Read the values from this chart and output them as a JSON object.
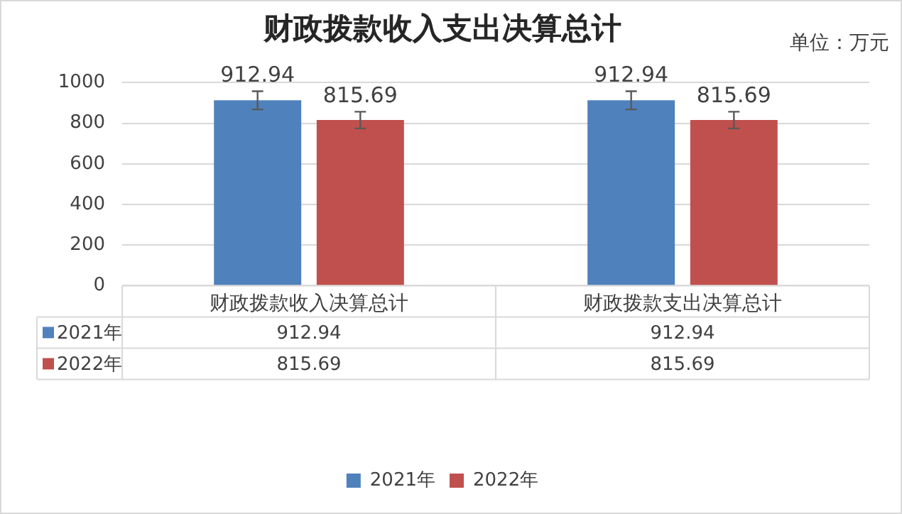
{
  "chart_data": {
    "type": "bar",
    "title": "财政拨款收入支出决算总计",
    "annotations": [
      "单位：万元",
      "912.94",
      "815.69",
      "912.94",
      "815.69"
    ],
    "categories": [
      "财政拨款收入决算总计",
      "财政拨款支出决算总计"
    ],
    "series": [
      {
        "name": "2021年",
        "color": "#4f81bd",
        "values": [
          912.94,
          912.94
        ],
        "errors": [
          45,
          45
        ]
      },
      {
        "name": "2022年",
        "color": "#c0504d",
        "values": [
          815.69,
          815.69
        ],
        "errors": [
          41,
          41
        ]
      }
    ],
    "ylim": [
      0,
      1000
    ],
    "yticks": [
      0,
      200,
      400,
      600,
      800,
      1000
    ],
    "grid": "y",
    "legend": "bottom",
    "data_labels": true
  }
}
